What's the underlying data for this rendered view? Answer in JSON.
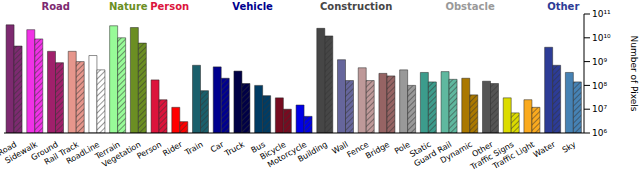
{
  "chart_data": {
    "type": "bar",
    "log": "y",
    "y_label": "Number of Pixels",
    "ylim": [
      1000000,
      100000000000
    ],
    "yticks": [
      {
        "value": 1000000,
        "label": "10⁶"
      },
      {
        "value": 10000000,
        "label": "10⁷"
      },
      {
        "value": 100000000,
        "label": "10⁸"
      },
      {
        "value": 1000000000,
        "label": "10⁹"
      },
      {
        "value": 10000000000,
        "label": "10¹⁰"
      },
      {
        "value": 100000000000,
        "label": "10¹¹"
      }
    ],
    "categories": [
      "Road",
      "Sidewalk",
      "Ground",
      "Rail Track",
      "RoadLine",
      "Terrain",
      "Vegetation",
      "Person",
      "Rider",
      "Train",
      "Car",
      "Truck",
      "Bus",
      "Bicycle",
      "Motorcycle",
      "Building",
      "Wall",
      "Fence",
      "Bridge",
      "Pole",
      "Static",
      "Guard Rail",
      "Dynamic",
      "Other",
      "Traffic Signs",
      "Traffic Light",
      "Water",
      "Sky"
    ],
    "colors": [
      "#7d2a70",
      "#f032e6",
      "#a0206b",
      "#e6968c",
      "#ffffff",
      "#98fb98",
      "#6b8e23",
      "#dc143c",
      "#ff0000",
      "#1b5f6b",
      "#00008e",
      "#000046",
      "#003c64",
      "#770b20",
      "#0000e6",
      "#464646",
      "#66669c",
      "#be9999",
      "#966464",
      "#999999",
      "#3c9c8c",
      "#5fb89f",
      "#aa7800",
      "#555555",
      "#dcdc00",
      "#faaa1e",
      "#2d3c96",
      "#4682b4"
    ],
    "series": [
      {
        "values": [
          35000000000,
          22000000000,
          2700000000,
          2700000000,
          1800000000,
          32000000000,
          27000000000,
          170000000,
          12000000,
          700000000,
          600000000,
          400000000,
          100000000,
          30000000,
          15000000,
          25000000000,
          1200000000,
          550000000,
          320000000,
          450000000,
          350000000,
          380000000,
          200000000,
          150000000,
          30000000,
          25000000,
          4000000000,
          350000000
        ]
      },
      {
        "values": [
          4500000000,
          9000000000,
          900000000,
          1000000000,
          450000000,
          10000000000,
          6000000000,
          25000000,
          3000000,
          60000000,
          200000000,
          120000000,
          37000000,
          10000000,
          5000000,
          12000000000,
          160000000,
          160000000,
          250000000,
          100000000,
          140000000,
          180000000,
          40000000,
          120000000,
          7000000,
          12000000,
          700000000,
          140000000
        ]
      }
    ],
    "groups": [
      {
        "name": "Road",
        "color": "#7d2a70",
        "categories": [
          "Road",
          "Sidewalk",
          "Ground",
          "Rail Track",
          "RoadLine"
        ]
      },
      {
        "name": "Nature",
        "color": "#6b8e23",
        "categories": [
          "Terrain",
          "Vegetation"
        ]
      },
      {
        "name": "Person",
        "color": "#dc143c",
        "categories": [
          "Person",
          "Rider"
        ]
      },
      {
        "name": "Vehicle",
        "color": "#00008e",
        "categories": [
          "Train",
          "Car",
          "Truck",
          "Bus",
          "Bicycle",
          "Motorcycle"
        ]
      },
      {
        "name": "Construction",
        "color": "#464646",
        "categories": [
          "Building",
          "Wall",
          "Fence",
          "Bridge"
        ]
      },
      {
        "name": "Obstacle",
        "color": "#999999",
        "categories": [
          "Pole",
          "Static",
          "Guard Rail",
          "Dynamic",
          "Other",
          "Traffic Signs",
          "Traffic Light"
        ]
      },
      {
        "name": "Other",
        "color": "#2d3c96",
        "categories": [
          "Water",
          "Sky"
        ]
      }
    ]
  }
}
